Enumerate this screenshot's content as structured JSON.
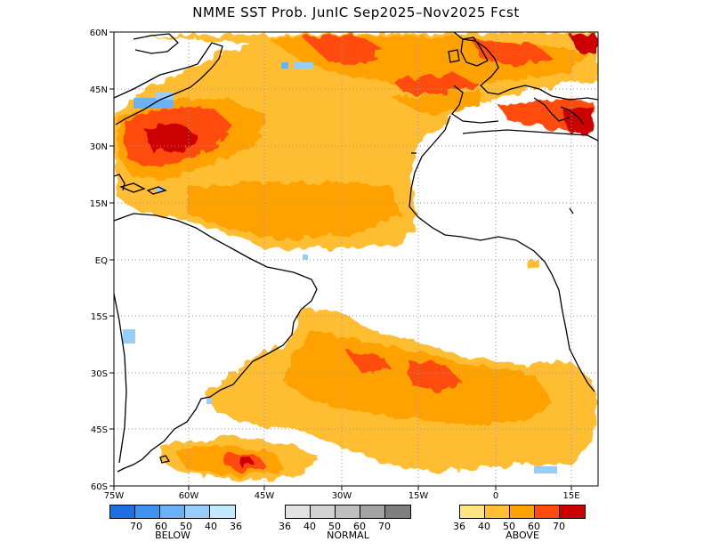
{
  "title": "NMME SST Prob. JunIC   Sep2025–Nov2025 Fcst",
  "map": {
    "lat_labels": [
      "60N",
      "45N",
      "30N",
      "15N",
      "EQ",
      "15S",
      "30S",
      "45S",
      "60S"
    ],
    "lon_labels": [
      "75W",
      "60W",
      "45W",
      "30W",
      "15W",
      "0",
      "15E"
    ],
    "colors": {
      "below": [
        "#1f6fe0",
        "#3f93ee",
        "#6cb1f5",
        "#98ccfa",
        "#c0e9fb"
      ],
      "normal": [
        "#e2e2e2",
        "#d2d2d2",
        "#bfbfbf",
        "#a3a3a3",
        "#7f7f7f"
      ],
      "above": [
        "#ffe680",
        "#ffbe33",
        "#ffa200",
        "#ff4c0a",
        "#cc0000"
      ]
    }
  },
  "legend": {
    "below": {
      "label": "BELOW",
      "ticks": [
        "70",
        "60",
        "50",
        "40",
        "36"
      ]
    },
    "normal": {
      "label": "NORMAL",
      "ticks": [
        "36",
        "40",
        "50",
        "60",
        "70"
      ]
    },
    "above": {
      "label": "ABOVE",
      "ticks": [
        "36",
        "40",
        "50",
        "60",
        "70"
      ]
    }
  }
}
